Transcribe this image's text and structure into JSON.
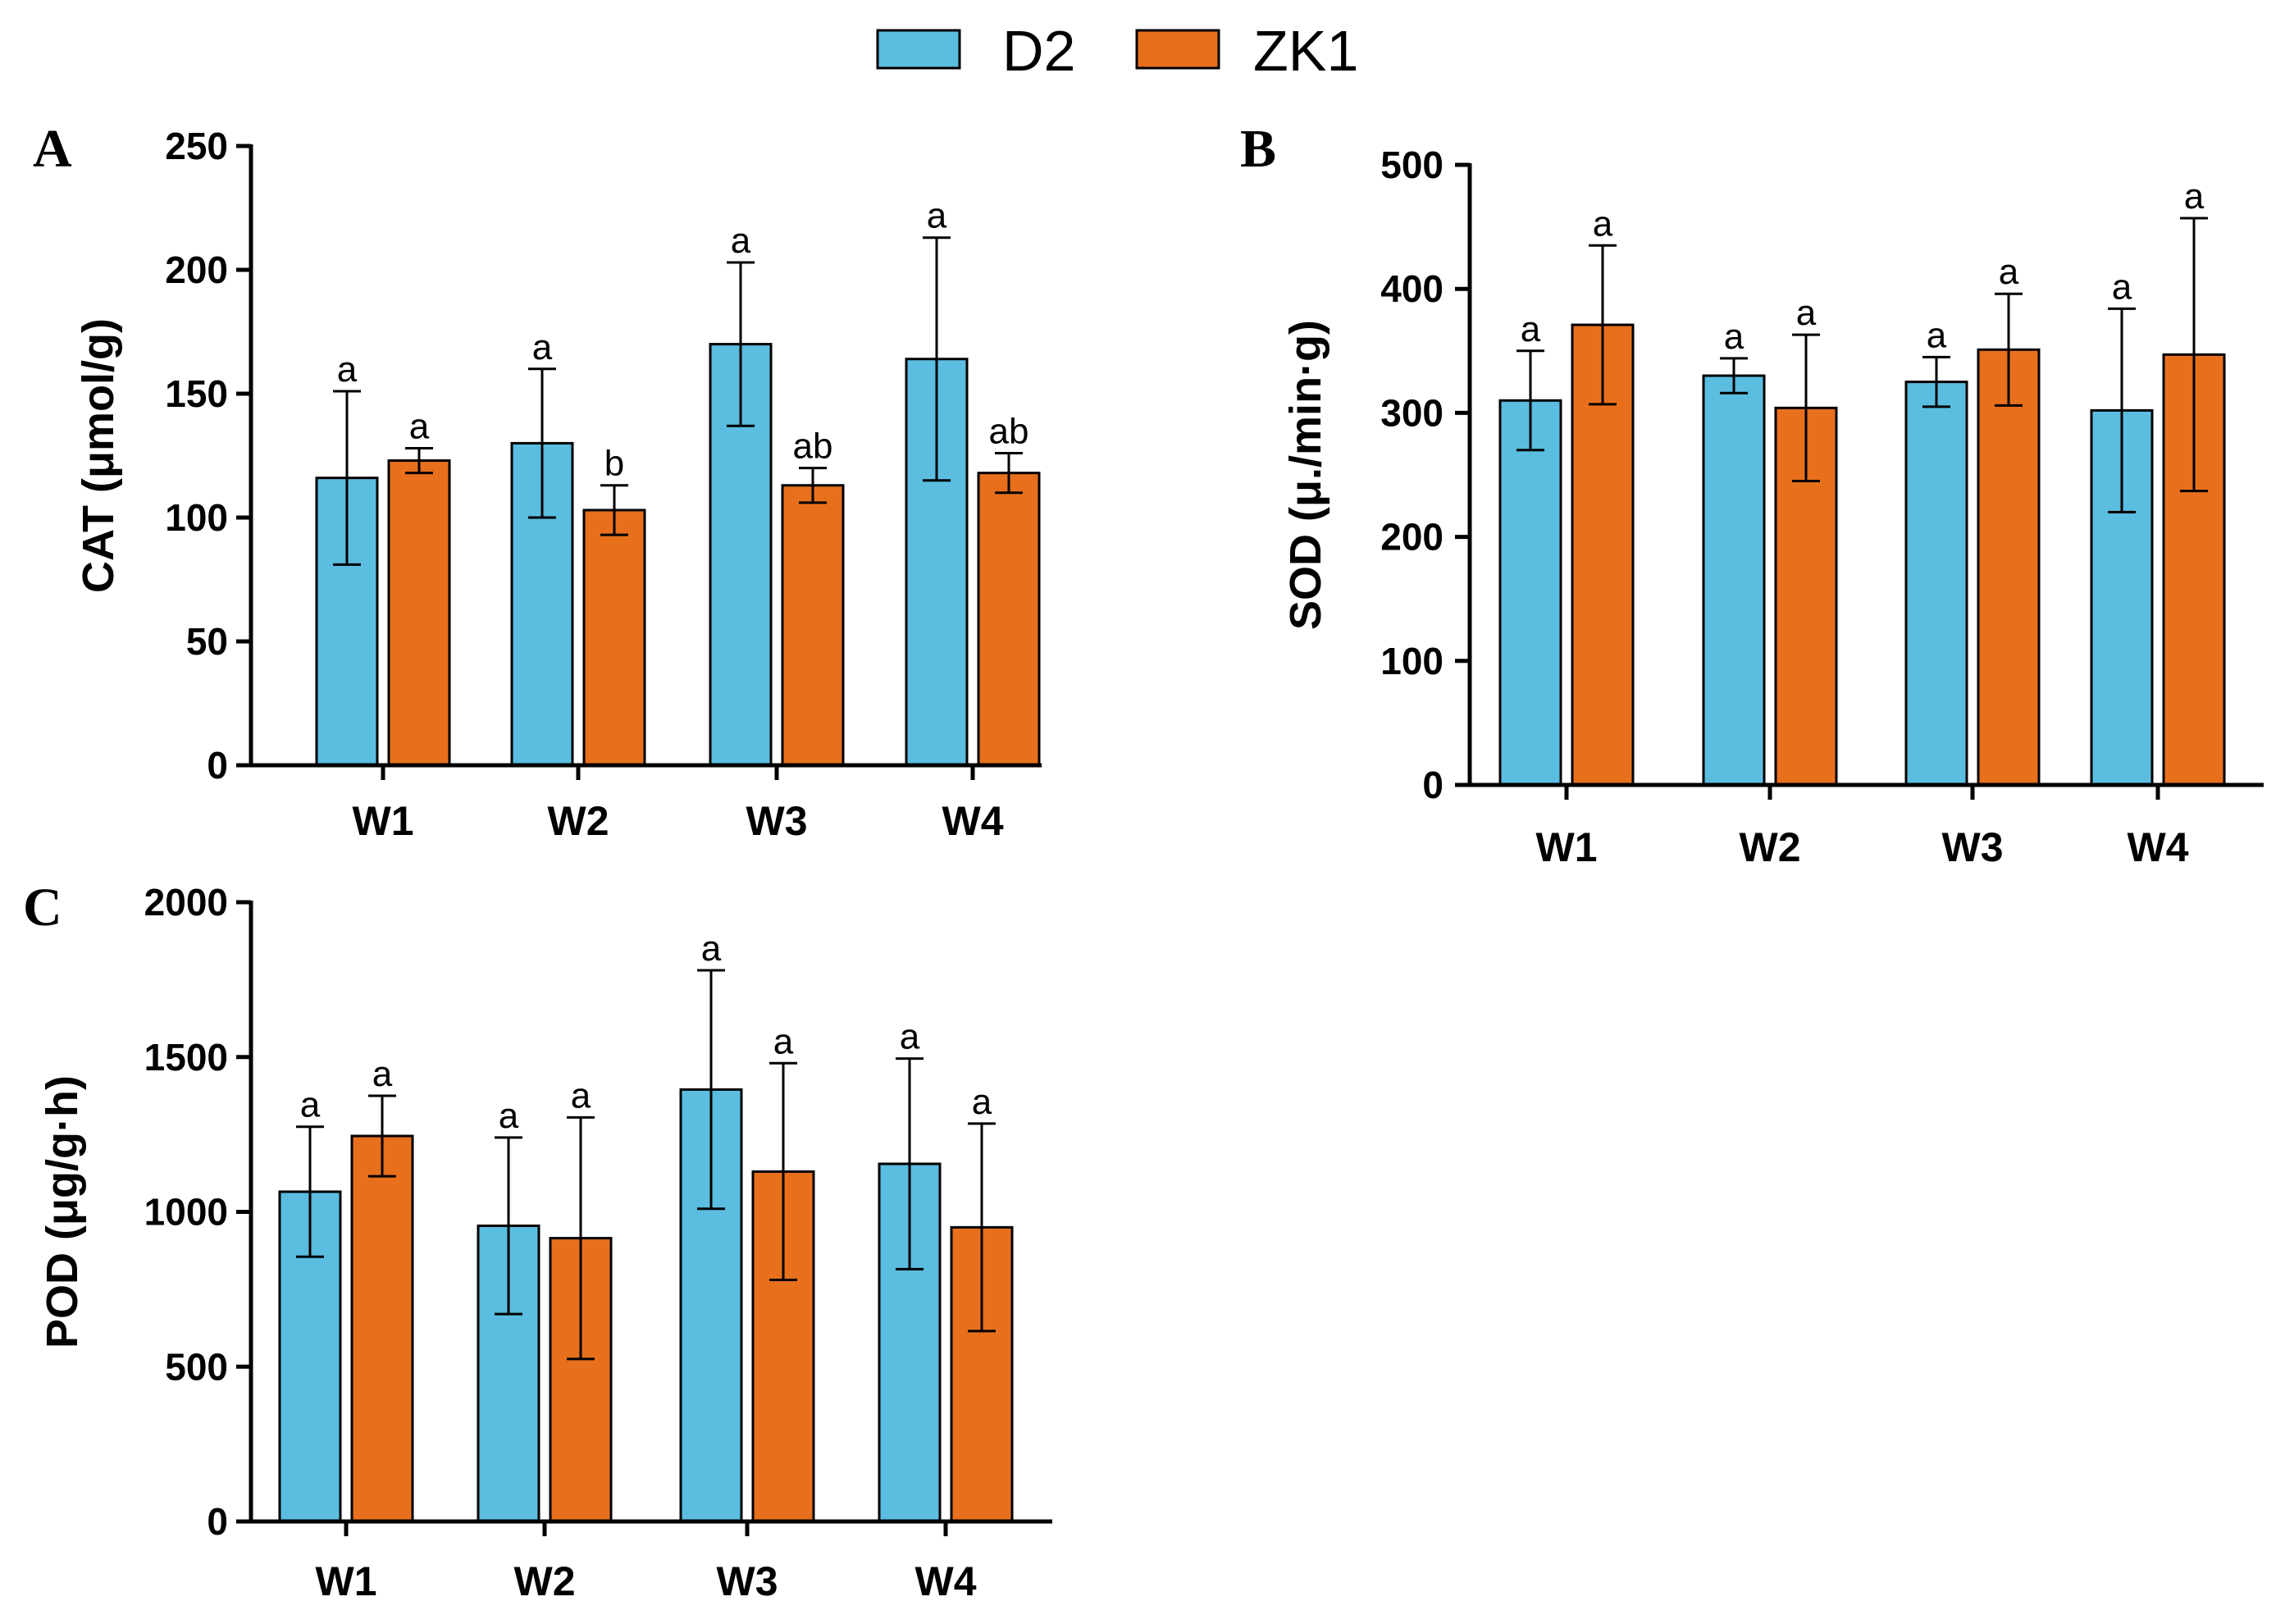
{
  "legend": {
    "entries": [
      {
        "name": "D2",
        "color": "#5bbde0"
      },
      {
        "name": "ZK1",
        "color": "#e8701d"
      }
    ]
  },
  "chart_data": [
    {
      "panel": "A",
      "type": "bar",
      "ylabel": "CAT (μmol/g)",
      "ylim": [
        0,
        250
      ],
      "yticks": [
        0,
        50,
        100,
        150,
        200,
        250
      ],
      "categories": [
        "W1",
        "W2",
        "W3",
        "W4"
      ],
      "series": [
        {
          "name": "D2",
          "color": "#5bbde0",
          "values": [
            116,
            130,
            170,
            164
          ],
          "errors": [
            35,
            30,
            33,
            49
          ],
          "labels": [
            "a",
            "a",
            "a",
            "a"
          ]
        },
        {
          "name": "ZK1",
          "color": "#e8701d",
          "values": [
            123,
            103,
            113,
            118
          ],
          "errors": [
            5,
            10,
            7,
            8
          ],
          "labels": [
            "a",
            "b",
            "ab",
            "ab"
          ]
        }
      ]
    },
    {
      "panel": "B",
      "type": "bar",
      "ylabel": "SOD (μ./min·g)",
      "ylim": [
        0,
        500
      ],
      "yticks": [
        0,
        100,
        200,
        300,
        400,
        500
      ],
      "categories": [
        "W1",
        "W2",
        "W3",
        "W4"
      ],
      "series": [
        {
          "name": "D2",
          "color": "#5bbde0",
          "values": [
            310,
            330,
            325,
            302
          ],
          "errors": [
            40,
            14,
            20,
            82
          ],
          "labels": [
            "a",
            "a",
            "a",
            "a"
          ]
        },
        {
          "name": "ZK1",
          "color": "#e8701d",
          "values": [
            371,
            304,
            351,
            347
          ],
          "errors": [
            64,
            59,
            45,
            110
          ],
          "labels": [
            "a",
            "a",
            "a",
            "a"
          ]
        }
      ]
    },
    {
      "panel": "C",
      "type": "bar",
      "ylabel": "POD (μg/g·h)",
      "ylim": [
        0,
        2000
      ],
      "yticks": [
        0,
        500,
        1000,
        1500,
        2000
      ],
      "categories": [
        "W1",
        "W2",
        "W3",
        "W4"
      ],
      "series": [
        {
          "name": "D2",
          "color": "#5bbde0",
          "values": [
            1065,
            955,
            1395,
            1155
          ],
          "errors": [
            210,
            285,
            385,
            340
          ],
          "labels": [
            "a",
            "a",
            "a",
            "a"
          ]
        },
        {
          "name": "ZK1",
          "color": "#e8701d",
          "values": [
            1245,
            915,
            1130,
            950
          ],
          "errors": [
            130,
            390,
            350,
            335
          ],
          "labels": [
            "a",
            "a",
            "a",
            "a"
          ]
        }
      ]
    }
  ]
}
